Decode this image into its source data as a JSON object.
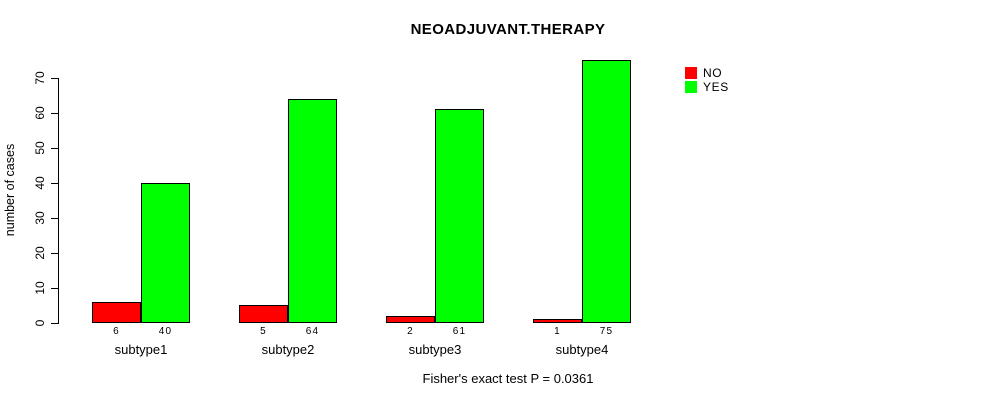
{
  "title": "NEOADJUVANT.THERAPY",
  "footnote": "Fisher's exact test P = 0.0361",
  "legend": {
    "items": [
      {
        "label": "NO",
        "color": "#FF0000"
      },
      {
        "label": "YES",
        "color": "#00FF00"
      }
    ]
  },
  "chart_data": {
    "type": "bar",
    "title": "NEOADJUVANT.THERAPY",
    "xlabel": "",
    "ylabel": "number of cases",
    "categories": [
      "subtype1",
      "subtype2",
      "subtype3",
      "subtype4"
    ],
    "series": [
      {
        "name": "NO",
        "color": "#FF0000",
        "values": [
          6,
          5,
          2,
          1
        ]
      },
      {
        "name": "YES",
        "color": "#00FF00",
        "values": [
          40,
          64,
          61,
          75
        ]
      }
    ],
    "bar_value_labels": [
      [
        "6",
        "40"
      ],
      [
        "5",
        "64"
      ],
      [
        "2",
        "61"
      ],
      [
        "1",
        "75"
      ]
    ],
    "ylim": [
      0,
      70
    ],
    "yticks": [
      0,
      10,
      20,
      30,
      40,
      50,
      60,
      70
    ],
    "grid": false,
    "legend_position": "top-right-outside-plot",
    "annotation": "Fisher's exact test P = 0.0361"
  }
}
